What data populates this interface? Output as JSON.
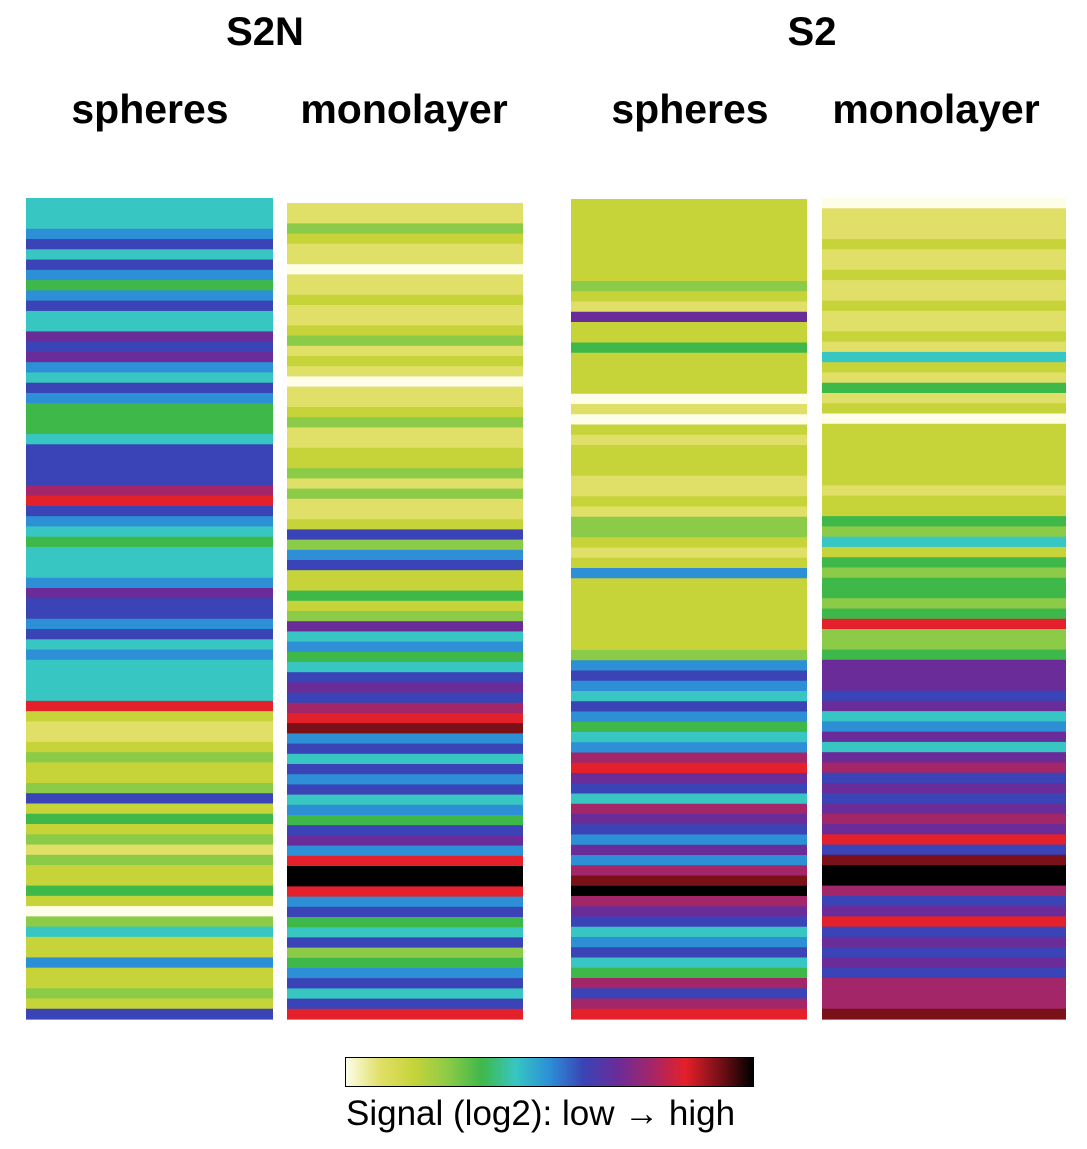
{
  "chart_data": {
    "type": "heatmap",
    "groups": [
      {
        "title": "S2N",
        "columns": [
          "spheres",
          "monolayer"
        ]
      },
      {
        "title": "S2",
        "columns": [
          "spheres",
          "monolayer"
        ]
      }
    ],
    "colormap": [
      "#fdfde8",
      "#e0df68",
      "#c6d43a",
      "#8ccb47",
      "#3fb84a",
      "#37c6c2",
      "#2d8fd6",
      "#3a44b6",
      "#6a2c99",
      "#a32669",
      "#e4202a",
      "#7a1018",
      "#000000"
    ],
    "legend": {
      "label": "Signal (log2): low → high"
    },
    "rows": 80,
    "series": [
      {
        "name": "S2N spheres",
        "values": [
          5,
          5,
          5,
          6,
          7,
          5,
          7,
          6,
          4,
          6,
          7,
          5,
          5,
          8,
          7,
          8,
          6,
          5,
          7,
          6,
          4,
          4,
          4,
          5,
          7,
          7,
          7,
          7,
          9,
          10,
          7,
          6,
          5,
          4,
          5,
          5,
          5,
          6,
          8,
          7,
          7,
          6,
          7,
          5,
          6,
          5,
          5,
          5,
          5,
          10,
          2,
          1,
          1,
          2,
          3,
          2,
          2,
          3,
          7,
          2,
          4,
          2,
          3,
          1,
          3,
          2,
          2,
          4,
          2,
          0,
          3,
          5,
          2,
          2,
          6,
          2,
          2,
          3,
          2,
          7
        ]
      },
      {
        "name": "S2N monolayer",
        "values": [
          1,
          1,
          3,
          2,
          1,
          1,
          0,
          1,
          1,
          2,
          1,
          1,
          2,
          3,
          1,
          2,
          1,
          0,
          1,
          1,
          2,
          3,
          1,
          1,
          2,
          2,
          3,
          1,
          3,
          1,
          1,
          2,
          7,
          3,
          6,
          7,
          2,
          2,
          4,
          2,
          3,
          8,
          5,
          6,
          4,
          5,
          7,
          8,
          7,
          9,
          10,
          11,
          6,
          7,
          5,
          7,
          6,
          7,
          5,
          6,
          4,
          7,
          8,
          6,
          10,
          12,
          12,
          10,
          6,
          7,
          4,
          5,
          7,
          3,
          4,
          6,
          7,
          5,
          7,
          10
        ]
      },
      {
        "name": "S2 spheres",
        "values": [
          2,
          2,
          2,
          2,
          2,
          2,
          2,
          2,
          3,
          2,
          1,
          8,
          2,
          2,
          4,
          2,
          2,
          2,
          2,
          0,
          1,
          0,
          2,
          1,
          2,
          2,
          2,
          1,
          1,
          2,
          1,
          3,
          3,
          2,
          1,
          2,
          6,
          2,
          2,
          2,
          2,
          2,
          2,
          2,
          3,
          6,
          7,
          6,
          5,
          7,
          6,
          4,
          5,
          6,
          9,
          10,
          8,
          7,
          5,
          9,
          8,
          7,
          6,
          8,
          6,
          9,
          11,
          12,
          9,
          8,
          7,
          5,
          6,
          7,
          5,
          4,
          9,
          7,
          9,
          10
        ]
      },
      {
        "name": "S2 monolayer",
        "values": [
          0,
          1,
          1,
          1,
          2,
          1,
          1,
          2,
          1,
          1,
          2,
          1,
          1,
          2,
          1,
          5,
          2,
          1,
          4,
          1,
          2,
          0,
          2,
          2,
          2,
          2,
          2,
          2,
          1,
          2,
          2,
          4,
          3,
          5,
          2,
          4,
          3,
          4,
          4,
          3,
          4,
          10,
          3,
          3,
          4,
          8,
          8,
          8,
          7,
          8,
          5,
          6,
          8,
          5,
          8,
          9,
          7,
          8,
          7,
          8,
          9,
          8,
          10,
          7,
          11,
          12,
          12,
          9,
          7,
          8,
          10,
          7,
          8,
          7,
          8,
          7,
          9,
          9,
          9,
          11
        ]
      }
    ]
  },
  "header": {
    "groups": [
      {
        "title": "S2N",
        "labels": [
          "spheres",
          "monolayer"
        ]
      },
      {
        "title": "S2",
        "labels": [
          "spheres",
          "monolayer"
        ]
      }
    ]
  }
}
